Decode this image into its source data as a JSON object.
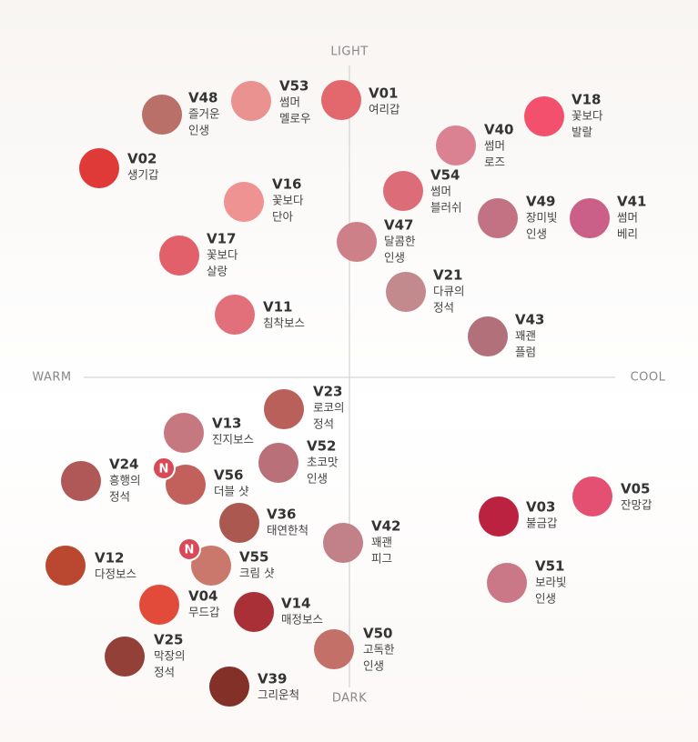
{
  "axes": {
    "top": "LIGHT",
    "bottom": "DARK",
    "left": "WARM",
    "right": "COOL"
  },
  "swatches": [
    {
      "code": "V48",
      "name": [
        "즐거운",
        "인생"
      ],
      "color": "#b87068"
    },
    {
      "code": "V53",
      "name": [
        "썸머",
        "멜로우"
      ],
      "color": "#ea9290"
    },
    {
      "code": "V01",
      "name": [
        "여리갑"
      ],
      "color": "#e2686e"
    },
    {
      "code": "V18",
      "name": [
        "꽃보다",
        "발랄"
      ],
      "color": "#f2506c"
    },
    {
      "code": "V40",
      "name": [
        "썸머",
        "로즈"
      ],
      "color": "#da8292"
    },
    {
      "code": "V02",
      "name": [
        "생기갑"
      ],
      "color": "#e03a38"
    },
    {
      "code": "V16",
      "name": [
        "꽃보다",
        "단아"
      ],
      "color": "#ee9292"
    },
    {
      "code": "V54",
      "name": [
        "썸머",
        "블러쉬"
      ],
      "color": "#dc6c78"
    },
    {
      "code": "V49",
      "name": [
        "장미빛",
        "인생"
      ],
      "color": "#c27282"
    },
    {
      "code": "V41",
      "name": [
        "썸머",
        "베리"
      ],
      "color": "#ca6088"
    },
    {
      "code": "V47",
      "name": [
        "달콤한",
        "인생"
      ],
      "color": "#ce8088"
    },
    {
      "code": "V17",
      "name": [
        "꽃보다",
        "살랑"
      ],
      "color": "#e2606a"
    },
    {
      "code": "V21",
      "name": [
        "다큐의",
        "정석"
      ],
      "color": "#c28a8c"
    },
    {
      "code": "V11",
      "name": [
        "침착보스"
      ],
      "color": "#e2707a"
    },
    {
      "code": "V43",
      "name": [
        "꽤괜",
        "플럼"
      ],
      "color": "#b2707a"
    },
    {
      "code": "V23",
      "name": [
        "로코의",
        "정석"
      ],
      "color": "#ba605a"
    },
    {
      "code": "V13",
      "name": [
        "진지보스"
      ],
      "color": "#c67880"
    },
    {
      "code": "V24",
      "name": [
        "흥행의",
        "정석"
      ],
      "color": "#b05858"
    },
    {
      "code": "V52",
      "name": [
        "초코맛",
        "인생"
      ],
      "color": "#ba7078"
    },
    {
      "code": "V56",
      "name": [
        "더블 샷"
      ],
      "color": "#c2605c",
      "badge": "N"
    },
    {
      "code": "V05",
      "name": [
        "잔망갑"
      ],
      "color": "#e45072"
    },
    {
      "code": "V03",
      "name": [
        "불금갑"
      ],
      "color": "#ba2240"
    },
    {
      "code": "V36",
      "name": [
        "태연한척"
      ],
      "color": "#aa5850"
    },
    {
      "code": "V42",
      "name": [
        "꽤괜",
        "피그"
      ],
      "color": "#c28088"
    },
    {
      "code": "V12",
      "name": [
        "다정보스"
      ],
      "color": "#ba4830"
    },
    {
      "code": "V55",
      "name": [
        "크림 샷"
      ],
      "color": "#ca786c",
      "badge": "N"
    },
    {
      "code": "V51",
      "name": [
        "보라빛",
        "인생"
      ],
      "color": "#ca7888"
    },
    {
      "code": "V04",
      "name": [
        "무드갑"
      ],
      "color": "#e24a3a"
    },
    {
      "code": "V14",
      "name": [
        "매정보스"
      ],
      "color": "#aa3038"
    },
    {
      "code": "V50",
      "name": [
        "고독한",
        "인생"
      ],
      "color": "#c27068"
    },
    {
      "code": "V25",
      "name": [
        "막장의",
        "정석"
      ],
      "color": "#924038"
    },
    {
      "code": "V39",
      "name": [
        "그리운척"
      ],
      "color": "#823028"
    }
  ]
}
